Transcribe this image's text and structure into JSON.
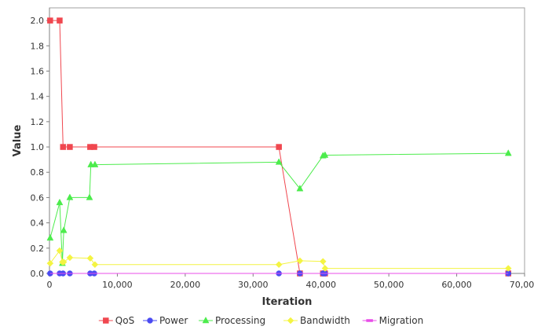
{
  "chart_data": {
    "type": "line",
    "title": "",
    "xlabel": "Iteration",
    "ylabel": "Value",
    "xlim": [
      0,
      70000
    ],
    "ylim": [
      0,
      2.1
    ],
    "xticks": [
      0,
      10000,
      20000,
      30000,
      40000,
      50000,
      60000,
      70000
    ],
    "xtick_labels": [
      "0",
      "10,000",
      "20,000",
      "30,000",
      "40,000",
      "50,000",
      "60,000",
      "70,000"
    ],
    "yticks": [
      0,
      0.2,
      0.4,
      0.6,
      0.8,
      1.0,
      1.2,
      1.4,
      1.6,
      1.8,
      2.0
    ],
    "ytick_labels": [
      "0.0",
      "0.2",
      "0.4",
      "0.6",
      "0.8",
      "1.0",
      "1.2",
      "1.4",
      "1.6",
      "1.8",
      "2.0"
    ],
    "grid": false,
    "legend_position": "bottom",
    "series": [
      {
        "name": "QoS",
        "color": "#f0474f",
        "marker": "square",
        "points": [
          [
            100,
            2.0
          ],
          [
            1500,
            2.0
          ],
          [
            2000,
            1.0
          ],
          [
            3000,
            1.0
          ],
          [
            6000,
            1.0
          ],
          [
            6600,
            1.0
          ],
          [
            33800,
            1.0
          ],
          [
            36900,
            0.0
          ],
          [
            40300,
            0.0
          ],
          [
            40600,
            0.0
          ],
          [
            67600,
            0.0
          ]
        ]
      },
      {
        "name": "Power",
        "color": "#4a4af2",
        "marker": "circle",
        "points": [
          [
            100,
            0.0
          ],
          [
            1500,
            0.0
          ],
          [
            2000,
            0.0
          ],
          [
            3000,
            0.0
          ],
          [
            6000,
            0.0
          ],
          [
            6600,
            0.0
          ],
          [
            33800,
            0.0
          ],
          [
            36900,
            0.0
          ],
          [
            40300,
            0.0
          ],
          [
            40600,
            0.0
          ],
          [
            67600,
            0.0
          ]
        ]
      },
      {
        "name": "Processing",
        "color": "#4cec4c",
        "marker": "triangle",
        "points": [
          [
            100,
            0.28
          ],
          [
            1500,
            0.56
          ],
          [
            1900,
            0.08
          ],
          [
            2100,
            0.34
          ],
          [
            3000,
            0.6
          ],
          [
            5900,
            0.6
          ],
          [
            6100,
            0.86
          ],
          [
            6700,
            0.86
          ],
          [
            33800,
            0.88
          ],
          [
            36900,
            0.67
          ],
          [
            40300,
            0.93
          ],
          [
            40600,
            0.935
          ],
          [
            67600,
            0.95
          ]
        ]
      },
      {
        "name": "Bandwidth",
        "color": "#f4f442",
        "marker": "diamond",
        "points": [
          [
            100,
            0.08
          ],
          [
            1500,
            0.18
          ],
          [
            1900,
            0.09
          ],
          [
            2100,
            0.09
          ],
          [
            3000,
            0.125
          ],
          [
            6000,
            0.12
          ],
          [
            6700,
            0.07
          ],
          [
            33800,
            0.07
          ],
          [
            36900,
            0.1
          ],
          [
            40300,
            0.095
          ],
          [
            40600,
            0.04
          ],
          [
            67600,
            0.04
          ]
        ]
      },
      {
        "name": "Migration",
        "color": "#e84de8",
        "marker": "dash",
        "points": [
          [
            100,
            0.0
          ],
          [
            67600,
            0.0
          ]
        ]
      }
    ]
  }
}
